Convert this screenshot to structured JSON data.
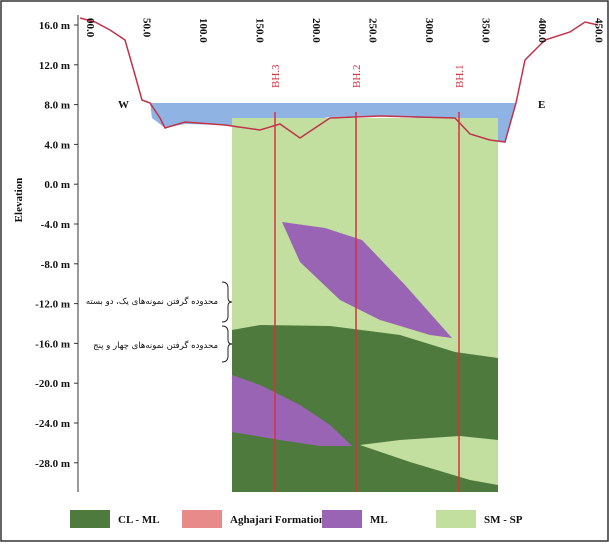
{
  "y_axis": {
    "label": "Elevation",
    "ticks": [
      "16.0 m",
      "12.0 m",
      "8.0 m",
      "4.0 m",
      "0.0 m",
      "-4.0 m",
      "-8.0 m",
      "-12.0 m",
      "-16.0 m",
      "-20.0 m",
      "-24.0 m",
      "-28.0 m"
    ]
  },
  "x_axis": {
    "ticks": [
      "00.0",
      "50.0",
      "100.0",
      "150.0",
      "200.0",
      "250.0",
      "300.0",
      "350.0",
      "400.0",
      "450.0"
    ]
  },
  "boreholes": [
    "BH.3",
    "BH.2",
    "BH.1"
  ],
  "directions": {
    "west": "W",
    "east": "E"
  },
  "annotations": [
    "محدوده گرفتن نمونه‌های یک، دو بسته",
    "محدوده گرفتن نمونه‌های چهار و پنج"
  ],
  "legend": [
    {
      "label": "CL - ML",
      "color": "#4f7a3e"
    },
    {
      "label": "Aghajari Formation",
      "color": "#e88a8a"
    },
    {
      "label": "ML",
      "color": "#9a64b4"
    },
    {
      "label": "SM - SP",
      "color": "#c2dfa0"
    }
  ]
}
